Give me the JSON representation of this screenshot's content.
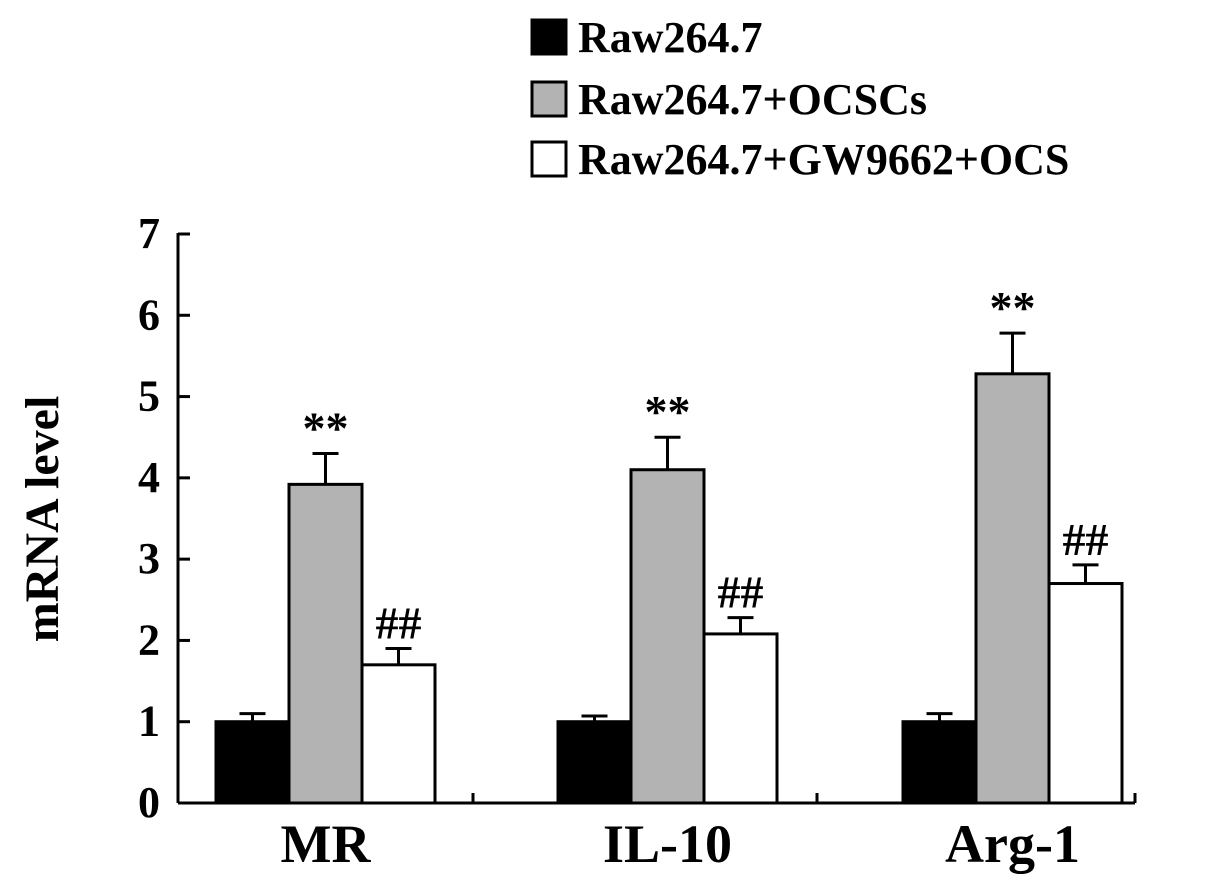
{
  "chart_data": {
    "type": "bar",
    "title": "",
    "xlabel": "",
    "ylabel": "mRNA level",
    "ylim": [
      0,
      7
    ],
    "yticks": [
      0,
      1,
      2,
      3,
      4,
      5,
      6,
      7
    ],
    "categories": [
      "MR",
      "IL-10",
      "Arg-1"
    ],
    "legend_position": "top-right",
    "series": [
      {
        "name": "Raw264.7",
        "color": "#000000",
        "values": [
          1.0,
          1.0,
          1.0
        ],
        "errors": [
          0.1,
          0.07,
          0.1
        ],
        "annotations": [
          "",
          "",
          ""
        ]
      },
      {
        "name": "Raw264.7+OCSCs",
        "color": "#b3b3b3",
        "values": [
          3.92,
          4.1,
          5.28
        ],
        "errors": [
          0.38,
          0.4,
          0.5
        ],
        "annotations": [
          "**",
          "**",
          "**"
        ]
      },
      {
        "name": "Raw264.7+GW9662+OCS",
        "color": "#ffffff",
        "values": [
          1.7,
          2.08,
          2.7
        ],
        "errors": [
          0.2,
          0.2,
          0.23
        ],
        "annotations": [
          "##",
          "##",
          "##"
        ]
      }
    ]
  }
}
